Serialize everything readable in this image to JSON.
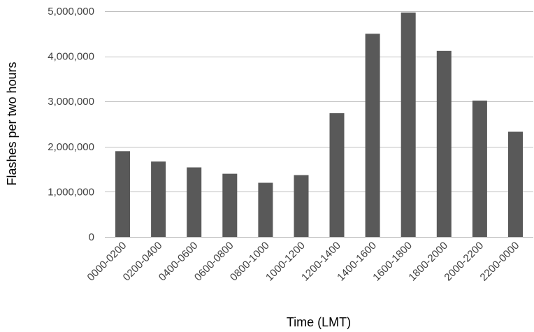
{
  "chart_data": {
    "type": "bar",
    "title": "",
    "xlabel": "Time (LMT)",
    "ylabel": "Flashes per two hours",
    "categories": [
      "0000-0200",
      "0200-0400",
      "0400-0600",
      "0600-0800",
      "0800-1000",
      "1000-1200",
      "1200-1400",
      "1400-1600",
      "1600-1800",
      "1800-2000",
      "2000-2200",
      "2200-0000"
    ],
    "values": [
      1900000,
      1670000,
      1540000,
      1400000,
      1200000,
      1370000,
      2740000,
      4500000,
      4970000,
      4120000,
      3020000,
      2330000
    ],
    "ylim": [
      0,
      5000000
    ],
    "yticks": [
      0,
      1000000,
      2000000,
      3000000,
      4000000,
      5000000
    ],
    "ytick_labels": [
      "0",
      "1,000,000",
      "2,000,000",
      "3,000,000",
      "4,000,000",
      "5,000,000"
    ],
    "grid": "horizontal",
    "bar_color": "#595959",
    "grid_color": "#c0c0c0"
  }
}
